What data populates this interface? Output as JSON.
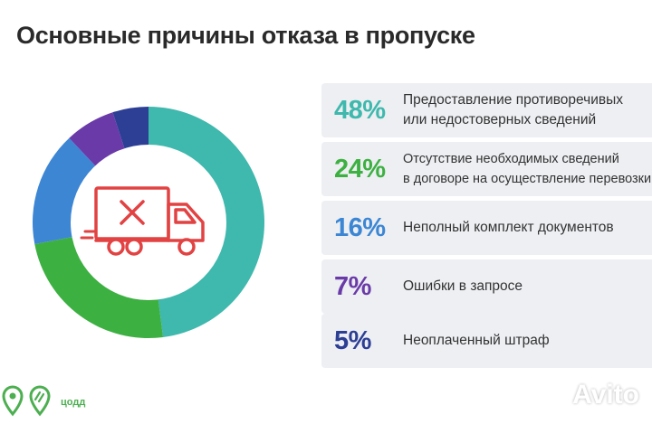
{
  "title": "Основные причины отказа в пропуске",
  "colors": {
    "teal": "#3fb8ad",
    "green": "#3db042",
    "blue": "#3c86d4",
    "purple": "#6a3aa8",
    "navy": "#2d3f95",
    "truck_red": "#e24242",
    "legend_bg": "#edeff2"
  },
  "chart_data": {
    "type": "pie",
    "title": "Основные причины отказа в пропуске",
    "slices": [
      {
        "value": 48,
        "label": "48%",
        "text": "Предоставление противоречивых\nили недостоверных сведений",
        "color": "#3fb8ad"
      },
      {
        "value": 24,
        "label": "24%",
        "text": "Отсутствие необходимых сведений\nв договоре на осуществление перевозки",
        "color": "#3db042"
      },
      {
        "value": 16,
        "label": "16%",
        "text": "Неполный комплект документов",
        "color": "#3c86d4"
      },
      {
        "value": 7,
        "label": "7%",
        "text": "Ошибки в запросе",
        "color": "#6a3aa8"
      },
      {
        "value": 5,
        "label": "5%",
        "text": "Неоплаченный штраф",
        "color": "#2d3f95"
      }
    ],
    "donut": true,
    "legend_placement": "right"
  },
  "center_icon": "truck-cross-icon",
  "footer": {
    "logo_icon": "location-pin-icon",
    "logo_text": "цодд"
  },
  "watermark": "Avito"
}
